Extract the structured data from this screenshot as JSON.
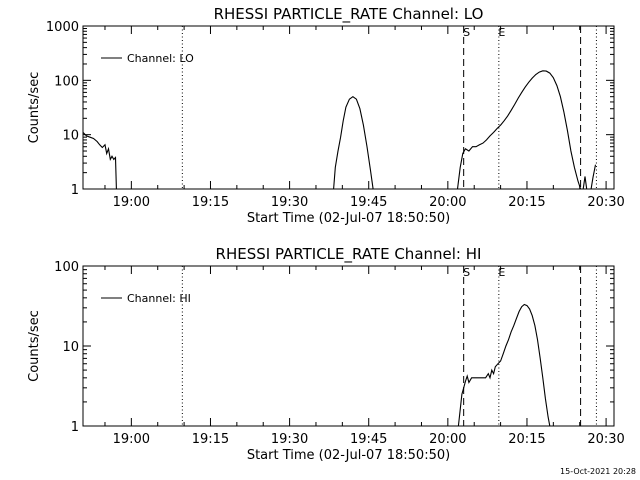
{
  "footer_timestamp": "15-Oct-2021 20:28",
  "colors": {
    "background": "#ffffff",
    "foreground": "#000000"
  },
  "chart_data": [
    {
      "type": "line",
      "title": "RHESSI PARTICLE_RATE Channel: LO",
      "xlabel": "Start Time (02-Jul-07 18:50:50)",
      "ylabel": "Counts/sec",
      "y_scale": "log",
      "xlim": [
        "18:50:50",
        "20:31:30"
      ],
      "ylim": [
        1,
        1000
      ],
      "x_ticks": [
        "19:00",
        "19:15",
        "19:30",
        "19:45",
        "20:00",
        "20:15",
        "20:30"
      ],
      "y_ticks": [
        "1",
        "10",
        "100",
        "1000"
      ],
      "legend": {
        "position": "top-left",
        "entries": [
          "Channel: LO"
        ]
      },
      "markers": [
        {
          "time": "19:09:40",
          "style": "dotted",
          "label": ""
        },
        {
          "time": "20:03:00",
          "style": "dashed",
          "label": "S"
        },
        {
          "time": "20:09:40",
          "style": "dotted",
          "label": "E"
        },
        {
          "time": "20:25:10",
          "style": "dashed",
          "label": ""
        },
        {
          "time": "20:28:10",
          "style": "dotted",
          "label": ""
        }
      ],
      "series": [
        {
          "segments": [
            [
              [
                "18:50:50",
                11
              ],
              [
                "18:51:30",
                9.5
              ],
              [
                "18:52:10",
                9
              ],
              [
                "18:52:50",
                8.5
              ],
              [
                "18:53:30",
                7.5
              ],
              [
                "18:54:00",
                6.5
              ],
              [
                "18:54:30",
                5.8
              ],
              [
                "18:55:00",
                6.5
              ],
              [
                "18:55:20",
                4.5
              ],
              [
                "18:55:40",
                5.5
              ],
              [
                "18:56:00",
                3.5
              ],
              [
                "18:56:20",
                4
              ],
              [
                "18:56:40",
                3.5
              ],
              [
                "18:57:00",
                3.8
              ],
              [
                "18:57:10",
                1
              ]
            ],
            [
              [
                "19:38:20",
                1
              ],
              [
                "19:38:40",
                2.5
              ],
              [
                "19:39:10",
                5
              ],
              [
                "19:39:40",
                9
              ],
              [
                "19:40:10",
                18
              ],
              [
                "19:40:40",
                32
              ],
              [
                "19:41:20",
                45
              ],
              [
                "19:42:00",
                50
              ],
              [
                "19:42:40",
                45
              ],
              [
                "19:43:20",
                30
              ],
              [
                "19:44:00",
                15
              ],
              [
                "19:44:40",
                6
              ],
              [
                "19:45:20",
                2.2
              ],
              [
                "19:45:50",
                1
              ]
            ],
            [
              [
                "20:01:50",
                1
              ],
              [
                "20:02:20",
                2.5
              ],
              [
                "20:02:50",
                4.5
              ],
              [
                "20:03:20",
                5.5
              ],
              [
                "20:04:00",
                5
              ],
              [
                "20:04:40",
                6
              ],
              [
                "20:05:20",
                6
              ],
              [
                "20:06:00",
                6.5
              ],
              [
                "20:06:40",
                7
              ],
              [
                "20:07:20",
                8
              ],
              [
                "20:08:00",
                9.5
              ],
              [
                "20:08:40",
                11
              ],
              [
                "20:09:20",
                13
              ],
              [
                "20:10:00",
                15
              ],
              [
                "20:10:40",
                18
              ],
              [
                "20:11:20",
                22
              ],
              [
                "20:12:00",
                28
              ],
              [
                "20:12:40",
                36
              ],
              [
                "20:13:20",
                47
              ],
              [
                "20:14:00",
                60
              ],
              [
                "20:14:40",
                75
              ],
              [
                "20:15:20",
                92
              ],
              [
                "20:16:00",
                110
              ],
              [
                "20:16:40",
                128
              ],
              [
                "20:17:20",
                142
              ],
              [
                "20:18:00",
                150
              ],
              [
                "20:18:40",
                148
              ],
              [
                "20:19:20",
                136
              ],
              [
                "20:20:00",
                112
              ],
              [
                "20:20:40",
                80
              ],
              [
                "20:21:20",
                50
              ],
              [
                "20:22:00",
                26
              ],
              [
                "20:22:40",
                12
              ],
              [
                "20:23:20",
                5
              ],
              [
                "20:24:00",
                2.5
              ],
              [
                "20:24:40",
                1.4
              ],
              [
                "20:25:10",
                1
              ]
            ],
            [
              [
                "20:25:40",
                1
              ],
              [
                "20:26:00",
                1.7
              ],
              [
                "20:26:20",
                1
              ]
            ],
            [
              [
                "20:27:10",
                1
              ],
              [
                "20:27:30",
                1.6
              ],
              [
                "20:28:00",
                2.8
              ]
            ]
          ]
        }
      ]
    },
    {
      "type": "line",
      "title": "RHESSI PARTICLE_RATE Channel: HI",
      "xlabel": "Start Time (02-Jul-07 18:50:50)",
      "ylabel": "Counts/sec",
      "y_scale": "log",
      "xlim": [
        "18:50:50",
        "20:31:30"
      ],
      "ylim": [
        1,
        100
      ],
      "x_ticks": [
        "19:00",
        "19:15",
        "19:30",
        "19:45",
        "20:00",
        "20:15",
        "20:30"
      ],
      "y_ticks": [
        "1",
        "10",
        "100"
      ],
      "legend": {
        "position": "top-left",
        "entries": [
          "Channel: HI"
        ]
      },
      "markers": [
        {
          "time": "19:09:40",
          "style": "dotted",
          "label": ""
        },
        {
          "time": "20:03:00",
          "style": "dashed",
          "label": "S"
        },
        {
          "time": "20:09:40",
          "style": "dotted",
          "label": "E"
        },
        {
          "time": "20:25:10",
          "style": "dashed",
          "label": ""
        },
        {
          "time": "20:28:10",
          "style": "dotted",
          "label": ""
        }
      ],
      "series": [
        {
          "segments": [
            [
              [
                "20:02:00",
                1
              ],
              [
                "20:02:20",
                1.6
              ],
              [
                "20:02:40",
                2.5
              ],
              [
                "20:03:00",
                3
              ],
              [
                "20:03:20",
                3.6
              ],
              [
                "20:03:40",
                4.2
              ],
              [
                "20:04:00",
                3.5
              ],
              [
                "20:04:30",
                4
              ],
              [
                "20:05:10",
                4
              ],
              [
                "20:05:50",
                4
              ],
              [
                "20:06:30",
                4
              ],
              [
                "20:07:10",
                4
              ],
              [
                "20:07:40",
                4.5
              ],
              [
                "20:08:00",
                4
              ],
              [
                "20:08:20",
                5
              ],
              [
                "20:08:40",
                4.5
              ],
              [
                "20:09:00",
                5.5
              ],
              [
                "20:09:30",
                6
              ],
              [
                "20:10:00",
                6.5
              ],
              [
                "20:10:30",
                8
              ],
              [
                "20:11:00",
                10
              ],
              [
                "20:11:30",
                12
              ],
              [
                "20:12:00",
                15
              ],
              [
                "20:12:30",
                18
              ],
              [
                "20:13:00",
                22
              ],
              [
                "20:13:30",
                27
              ],
              [
                "20:14:00",
                31
              ],
              [
                "20:14:30",
                33
              ],
              [
                "20:15:00",
                32
              ],
              [
                "20:15:30",
                29
              ],
              [
                "20:16:00",
                24
              ],
              [
                "20:16:30",
                18
              ],
              [
                "20:17:00",
                12
              ],
              [
                "20:17:30",
                7
              ],
              [
                "20:18:00",
                4
              ],
              [
                "20:18:30",
                2.2
              ],
              [
                "20:19:00",
                1.3
              ],
              [
                "20:19:20",
                1
              ]
            ]
          ]
        }
      ]
    }
  ]
}
